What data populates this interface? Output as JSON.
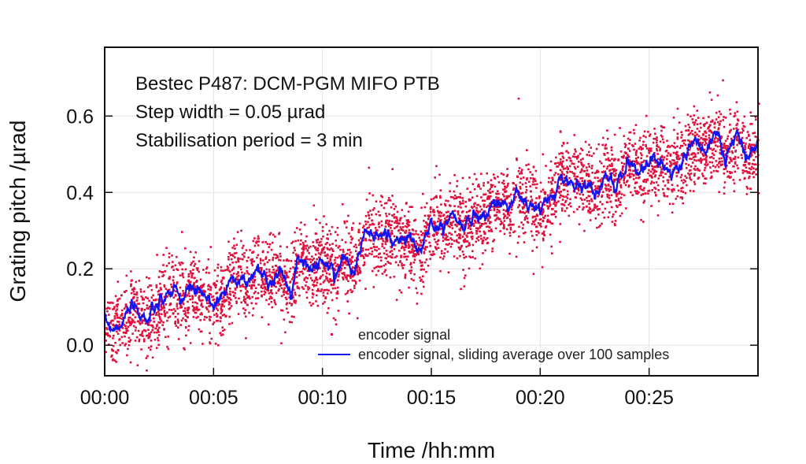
{
  "chart_data": {
    "type": "scatter",
    "title_lines": [
      "Bestec P487: DCM-PGM MIFO PTB",
      "Step width = 0.05 µrad",
      "Stabilisation period = 3 min"
    ],
    "xlabel": "Time /hh:mm",
    "ylabel": "Grating pitch /µrad",
    "xlim": [
      "00:00",
      "00:30"
    ],
    "ylim": [
      -0.08,
      0.78
    ],
    "xticks": [
      "00:00",
      "00:05",
      "00:10",
      "00:15",
      "00:20",
      "00:25"
    ],
    "yticks": [
      "0.0",
      "0.2",
      "0.4",
      "0.6"
    ],
    "grid": true,
    "legend_placement": "bottom-right",
    "colors": {
      "scatter": "#e0103c",
      "line": "#1414f0"
    },
    "series": [
      {
        "name": "encoder signal",
        "kind": "scatter"
      },
      {
        "name": "encoder signal, sliding average over 100 samples",
        "kind": "line",
        "x": [
          "00:00:00",
          "00:00:30",
          "00:01:00",
          "00:01:30",
          "00:02:00",
          "00:02:30",
          "00:03:00",
          "00:03:30",
          "00:04:00",
          "00:04:30",
          "00:05:00",
          "00:05:30",
          "00:06:00",
          "00:06:30",
          "00:07:00",
          "00:07:30",
          "00:08:00",
          "00:08:30",
          "00:09:00",
          "00:09:30",
          "00:10:00",
          "00:10:30",
          "00:11:00",
          "00:11:30",
          "00:12:00",
          "00:12:30",
          "00:13:00",
          "00:13:30",
          "00:14:00",
          "00:14:30",
          "00:15:00",
          "00:15:30",
          "00:16:00",
          "00:16:30",
          "00:17:00",
          "00:17:30",
          "00:18:00",
          "00:18:30",
          "00:19:00",
          "00:19:30",
          "00:20:00",
          "00:20:30",
          "00:21:00",
          "00:21:30",
          "00:22:00",
          "00:22:30",
          "00:23:00",
          "00:23:30",
          "00:24:00",
          "00:24:30",
          "00:25:00",
          "00:25:30",
          "00:26:00",
          "00:26:30",
          "00:27:00",
          "00:27:30",
          "00:28:00",
          "00:28:30",
          "00:29:00",
          "00:29:30",
          "00:30:00"
        ],
        "y": [
          0.06,
          0.05,
          0.08,
          0.09,
          0.07,
          0.1,
          0.14,
          0.12,
          0.15,
          0.12,
          0.11,
          0.14,
          0.19,
          0.16,
          0.2,
          0.17,
          0.19,
          0.16,
          0.24,
          0.2,
          0.22,
          0.19,
          0.23,
          0.21,
          0.3,
          0.28,
          0.29,
          0.27,
          0.28,
          0.24,
          0.32,
          0.31,
          0.34,
          0.3,
          0.35,
          0.34,
          0.38,
          0.37,
          0.39,
          0.36,
          0.35,
          0.38,
          0.44,
          0.42,
          0.43,
          0.4,
          0.45,
          0.41,
          0.48,
          0.46,
          0.47,
          0.49,
          0.46,
          0.48,
          0.53,
          0.51,
          0.55,
          0.5,
          0.54,
          0.49,
          0.52
        ]
      }
    ]
  }
}
